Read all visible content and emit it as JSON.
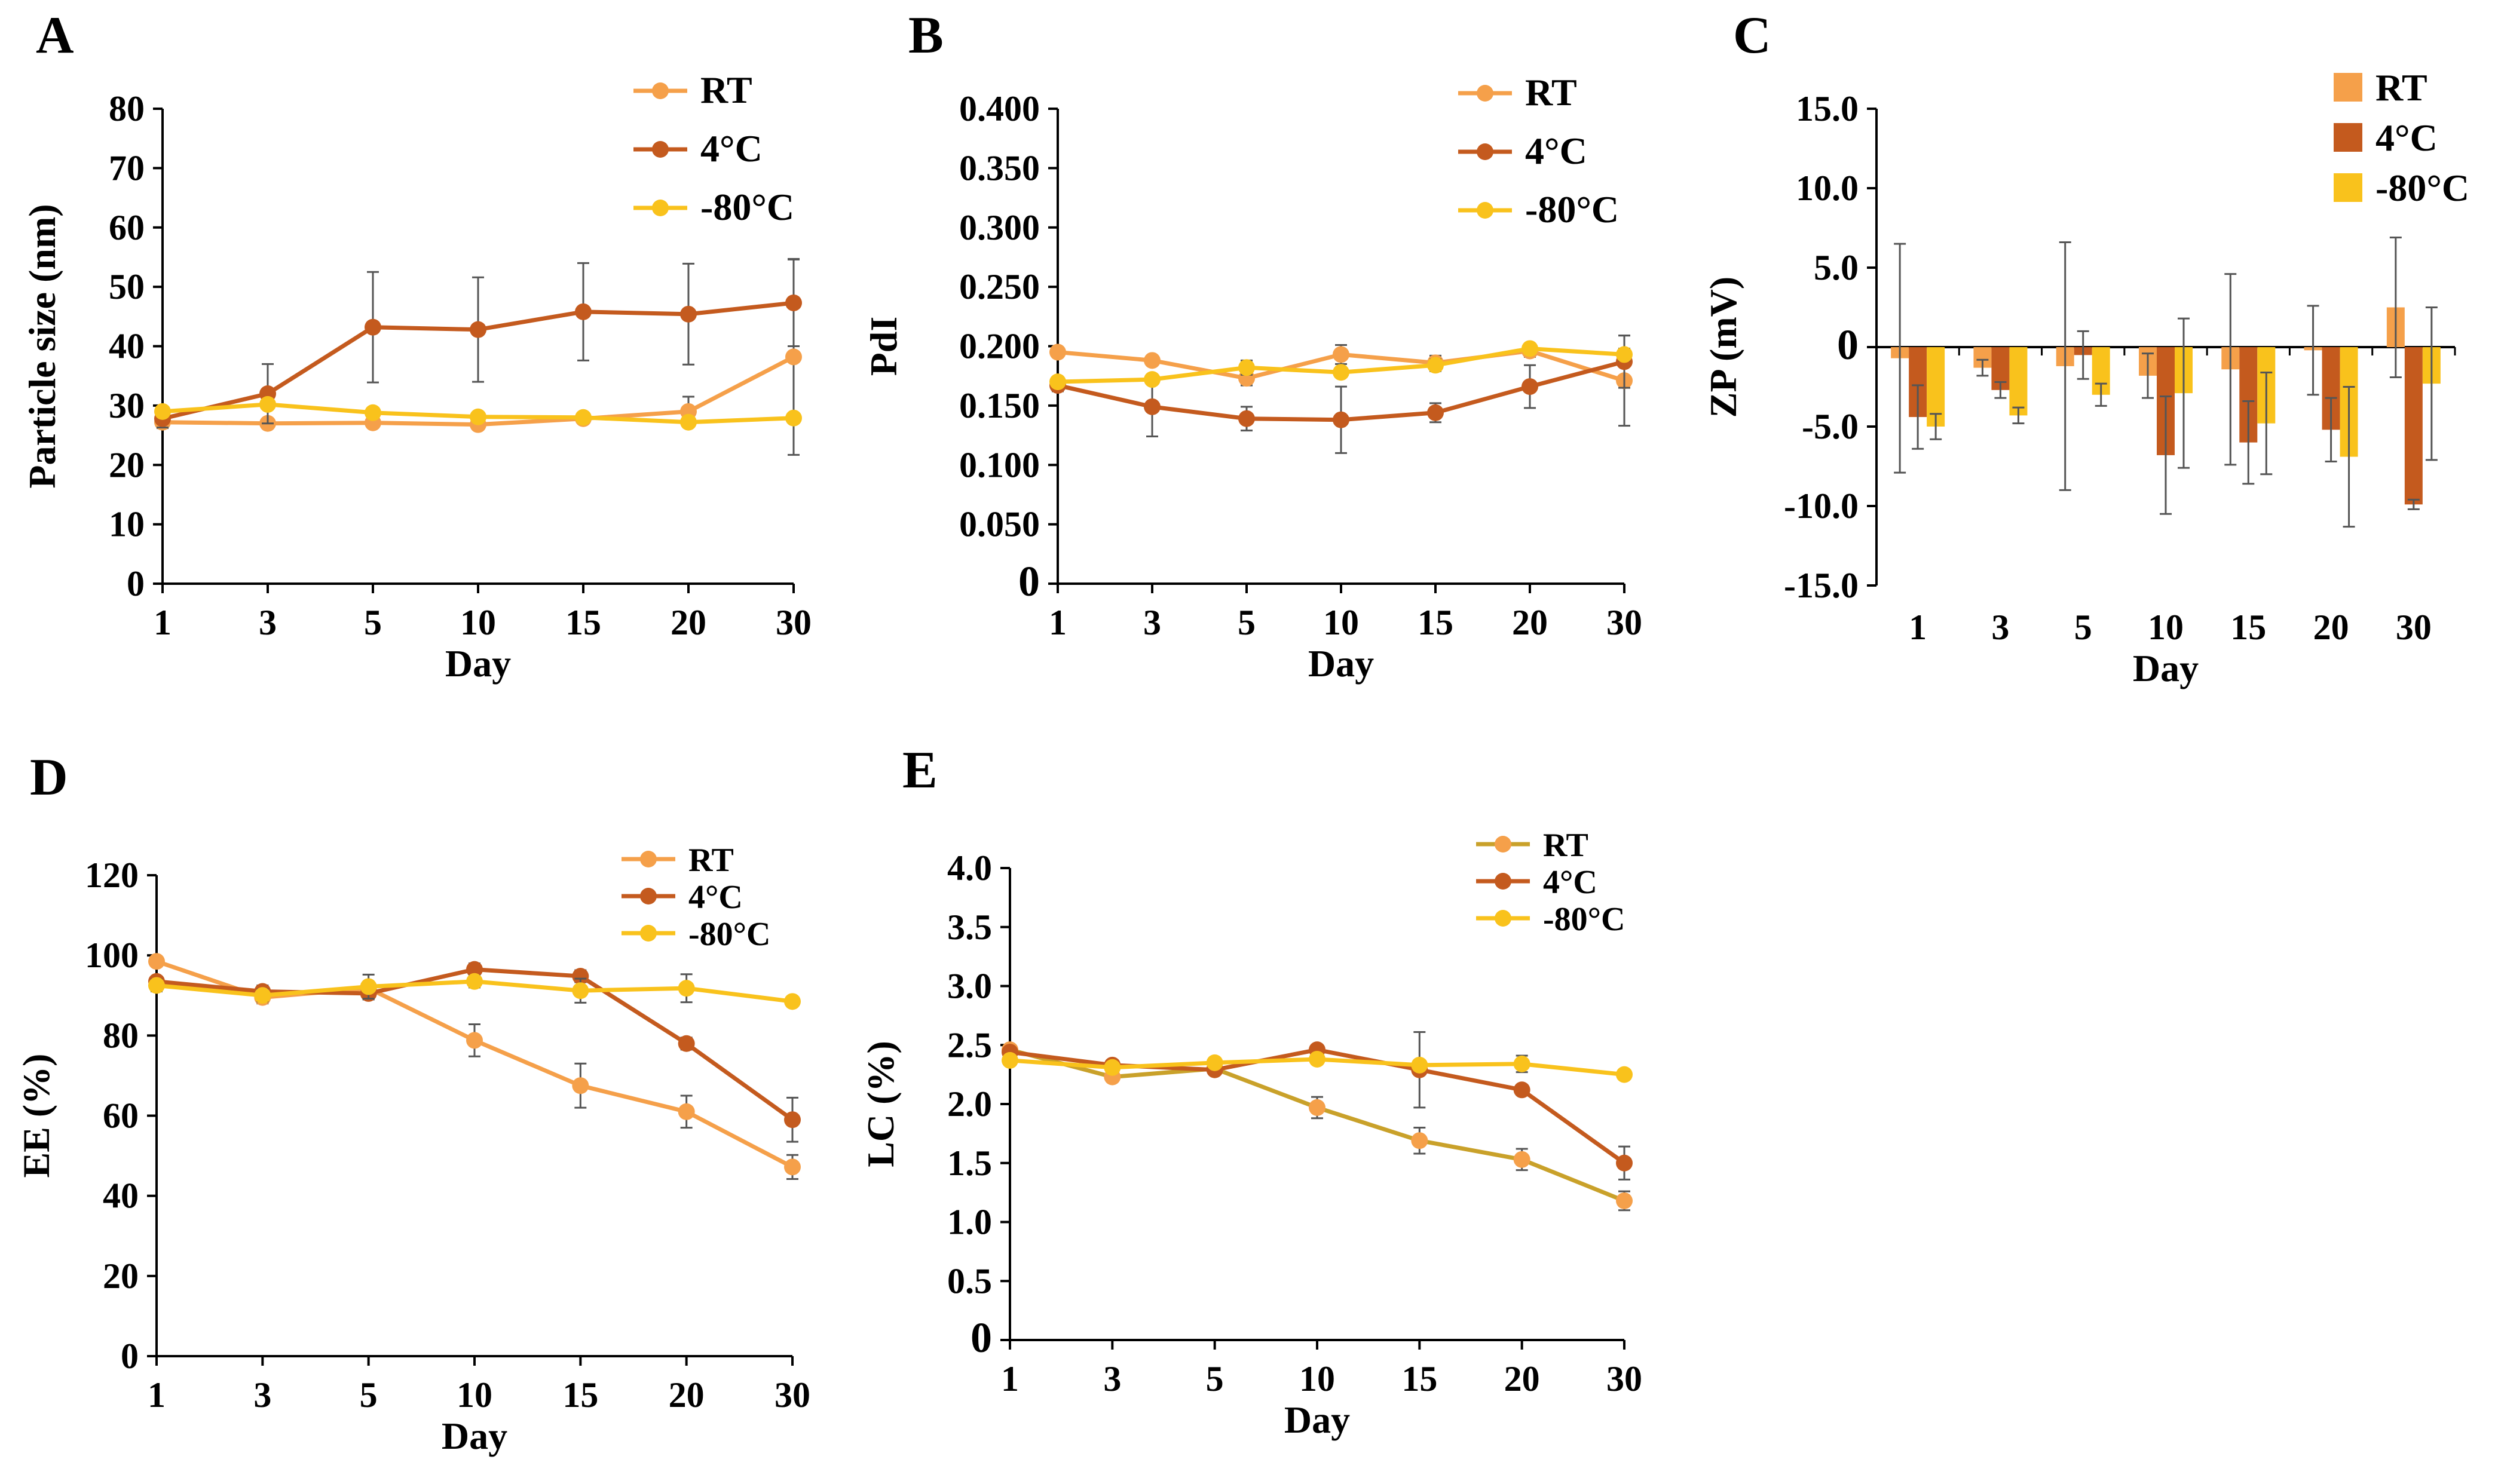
{
  "figure": {
    "colors": {
      "RT": "#F5A04A",
      "4C": "#C45A1E",
      "m80C": "#F9C21C",
      "RT_line_E": "#C9A12A",
      "axis": "#000000",
      "error": "#555555"
    }
  },
  "chart_data": [
    {
      "id": "A",
      "panel_letter": "A",
      "type": "line",
      "title": "",
      "xlabel": "Day",
      "ylabel": "Particle size (nm)",
      "categories": [
        "1",
        "3",
        "5",
        "10",
        "15",
        "20",
        "30"
      ],
      "ylim": [
        0,
        80
      ],
      "yticks": [
        "0",
        "10",
        "20",
        "30",
        "40",
        "50",
        "60",
        "70",
        "80"
      ],
      "ytick_values": [
        0,
        10,
        20,
        30,
        40,
        50,
        60,
        70,
        80
      ],
      "legend": "top-right",
      "series": [
        {
          "name": "RT",
          "color": "#F5A04A",
          "values": [
            27.2,
            27.0,
            27.1,
            26.8,
            27.8,
            29.0,
            38.2
          ],
          "errors": [
            1.0,
            0.8,
            0.8,
            0.8,
            0.8,
            2.5,
            16.5
          ]
        },
        {
          "name": "4°C",
          "color": "#C45A1E",
          "values": [
            27.8,
            32.0,
            43.2,
            42.8,
            45.8,
            45.4,
            47.3
          ],
          "errors": [
            1.5,
            5.0,
            9.3,
            8.8,
            8.2,
            8.5,
            7.3
          ]
        },
        {
          "name": "-80°C",
          "color": "#F9C21C",
          "values": [
            29.0,
            30.2,
            28.8,
            28.1,
            28.0,
            27.2,
            27.9
          ],
          "errors": [
            0.8,
            0.8,
            0.8,
            0.8,
            0.8,
            0.8,
            0.8
          ]
        }
      ]
    },
    {
      "id": "B",
      "panel_letter": "B",
      "type": "line",
      "title": "",
      "xlabel": "Day",
      "ylabel": "PdI",
      "categories": [
        "1",
        "3",
        "5",
        "10",
        "15",
        "20",
        "30"
      ],
      "ylim": [
        0,
        0.4
      ],
      "yticks": [
        "0",
        "0.050",
        "0.100",
        "0.150",
        "0.200",
        "0.250",
        "0.300",
        "0.350",
        "0.400"
      ],
      "ytick_values": [
        0,
        0.05,
        0.1,
        0.15,
        0.2,
        0.25,
        0.3,
        0.35,
        0.4
      ],
      "legend": "top-right",
      "series": [
        {
          "name": "RT",
          "color": "#F5A04A",
          "values": [
            0.195,
            0.188,
            0.173,
            0.193,
            0.186,
            0.196,
            0.171
          ],
          "errors": [
            0.004,
            0.004,
            0.006,
            0.008,
            0.006,
            0.005,
            0.038
          ]
        },
        {
          "name": "4°C",
          "color": "#C45A1E",
          "values": [
            0.167,
            0.149,
            0.139,
            0.138,
            0.144,
            0.166,
            0.187
          ],
          "errors": [
            0.005,
            0.025,
            0.01,
            0.028,
            0.008,
            0.018,
            0.022
          ]
        },
        {
          "name": "-80°C",
          "color": "#F9C21C",
          "values": [
            0.17,
            0.172,
            0.182,
            0.178,
            0.184,
            0.198,
            0.193
          ],
          "errors": [
            0.004,
            0.004,
            0.006,
            0.004,
            0.005,
            0.004,
            0.005
          ]
        }
      ]
    },
    {
      "id": "C",
      "panel_letter": "C",
      "type": "bar",
      "title": "",
      "xlabel": "Day",
      "ylabel": "ZP (mV)",
      "categories": [
        "1",
        "3",
        "5",
        "10",
        "15",
        "20",
        "30"
      ],
      "ylim": [
        -15,
        15
      ],
      "yticks": [
        "-15.0",
        "-10.0",
        "-5.0",
        "0",
        "5.0",
        "10.0",
        "15.0"
      ],
      "ytick_values": [
        -15,
        -10,
        -5,
        0,
        5,
        10,
        15
      ],
      "legend": "top-right",
      "series": [
        {
          "name": "RT",
          "color": "#F5A04A",
          "values": [
            -0.7,
            -1.3,
            -1.2,
            -1.8,
            -1.4,
            -0.2,
            2.5
          ],
          "errors": [
            7.2,
            0.5,
            7.8,
            1.4,
            6.0,
            2.8,
            4.4
          ]
        },
        {
          "name": "4°C",
          "color": "#C45A1E",
          "values": [
            -4.4,
            -2.7,
            -0.5,
            -6.8,
            -6.0,
            -5.2,
            -9.9
          ],
          "errors": [
            2.0,
            0.5,
            1.5,
            3.7,
            2.6,
            2.0,
            0.3
          ]
        },
        {
          "name": "-80°C",
          "color": "#F9C21C",
          "values": [
            -5.0,
            -4.3,
            -3.0,
            -2.9,
            -4.8,
            -6.9,
            -2.3
          ],
          "errors": [
            0.8,
            0.5,
            0.7,
            4.7,
            3.2,
            4.4,
            4.8
          ]
        }
      ]
    },
    {
      "id": "D",
      "panel_letter": "D",
      "type": "line",
      "title": "",
      "xlabel": "Day",
      "ylabel": "EE (%)",
      "categories": [
        "1",
        "3",
        "5",
        "10",
        "15",
        "20",
        "30"
      ],
      "ylim": [
        0,
        120
      ],
      "yticks": [
        "0",
        "20",
        "40",
        "60",
        "80",
        "100",
        "120"
      ],
      "ytick_values": [
        0,
        20,
        40,
        60,
        80,
        100,
        120
      ],
      "legend": "top-right",
      "series": [
        {
          "name": "RT",
          "color": "#F5A04A",
          "values": [
            98.5,
            89.5,
            91.8,
            78.8,
            67.5,
            61.0,
            47.2
          ],
          "errors": [
            1.0,
            1.5,
            1.5,
            4.0,
            5.5,
            4.0,
            3.0
          ]
        },
        {
          "name": "4°C",
          "color": "#C45A1E",
          "values": [
            93.5,
            91.0,
            90.5,
            96.5,
            94.8,
            78.0,
            59.0
          ],
          "errors": [
            1.0,
            1.5,
            1.5,
            1.5,
            1.5,
            1.5,
            5.5
          ]
        },
        {
          "name": "-80°C",
          "color": "#F9C21C",
          "values": [
            92.5,
            90.0,
            92.2,
            93.5,
            91.2,
            91.8,
            88.5
          ],
          "errors": [
            1.5,
            1.5,
            3.0,
            1.5,
            3.0,
            3.5,
            1.0
          ]
        }
      ]
    },
    {
      "id": "E",
      "panel_letter": "E",
      "type": "line",
      "title": "",
      "xlabel": "Day",
      "ylabel": "LC (%)",
      "categories": [
        "1",
        "3",
        "5",
        "10",
        "15",
        "20",
        "30"
      ],
      "ylim": [
        0,
        4
      ],
      "yticks": [
        "0",
        "0.5",
        "1.0",
        "1.5",
        "2.0",
        "2.5",
        "3.0",
        "3.5",
        "4.0"
      ],
      "ytick_values": [
        0,
        0.5,
        1,
        1.5,
        2,
        2.5,
        3,
        3.5,
        4
      ],
      "legend": "top-right",
      "series": [
        {
          "name": "RT",
          "color": "#F5A04A",
          "line_color": "#C9A12A",
          "values": [
            2.46,
            2.23,
            2.3,
            1.97,
            1.69,
            1.53,
            1.18
          ],
          "errors": [
            0.04,
            0.04,
            0.04,
            0.09,
            0.11,
            0.09,
            0.08
          ]
        },
        {
          "name": "4°C",
          "color": "#C45A1E",
          "values": [
            2.44,
            2.33,
            2.29,
            2.46,
            2.29,
            2.12,
            1.5
          ],
          "errors": [
            0.04,
            0.04,
            0.04,
            0.04,
            0.32,
            0.04,
            0.14
          ]
        },
        {
          "name": "-80°C",
          "color": "#F9C21C",
          "values": [
            2.37,
            2.31,
            2.35,
            2.38,
            2.33,
            2.34,
            2.25
          ],
          "errors": [
            0.04,
            0.04,
            0.04,
            0.04,
            0.04,
            0.07,
            0.04
          ]
        }
      ]
    }
  ]
}
